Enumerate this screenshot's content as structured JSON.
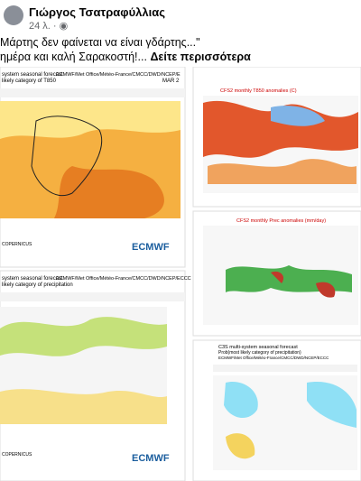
{
  "post": {
    "author": "Γιώργος Τσατραφύλλιας",
    "time": "24 λ. ·",
    "text_line1": "Μάρτης δεν φαίνεται να είναι γδάρτης...\"",
    "text_line2": "ημέρα και καλή Σαρακοστή!...",
    "see_more": "Δείτε περισσότερα"
  },
  "images": [
    {
      "title": "system seasonal forecast",
      "subtitle": "likely category of T850",
      "source": "ECMWF/Met Office/Météo-France/CMCC/DWD/NCEP/E",
      "month": "MAR 2",
      "logo1": "COPERNICUS",
      "logo2": "ECMWF"
    },
    {
      "title": "CFS2 monthly T850 anomalies (C)"
    },
    {
      "title": "CFS2 monthly Prec anomalies (mm/day)"
    },
    {
      "title": "system seasonal forecast",
      "subtitle": "likely category of precipitation",
      "source": "ECMWF/Met Office/Météo-France/CMCC/DWD/NCEP/ECCC",
      "logo1": "COPERNICUS",
      "logo2": "ECMWF"
    },
    {
      "title": "C3S multi-system seasonal forecast",
      "subtitle": "Prob(most likely category of precipitation)",
      "source": "ECMWF/Met Office/Météo-France/CMCC/DWD/NCEP/ECCC"
    }
  ]
}
